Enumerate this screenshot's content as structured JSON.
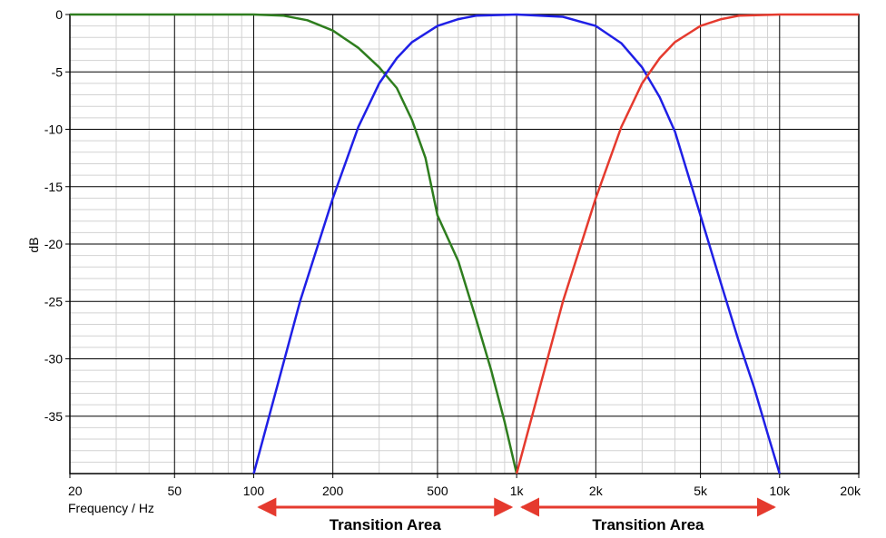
{
  "chart_data": {
    "type": "line",
    "xscale": "log",
    "xlabel": "Frequency / Hz",
    "ylabel": "dB",
    "xlim": [
      20,
      20000
    ],
    "ylim": [
      -40,
      0
    ],
    "grid": true,
    "x_ticks": [
      {
        "value": 20,
        "label": "20"
      },
      {
        "value": 50,
        "label": "50"
      },
      {
        "value": 100,
        "label": "100"
      },
      {
        "value": 200,
        "label": "200"
      },
      {
        "value": 500,
        "label": "500"
      },
      {
        "value": 1000,
        "label": "1k"
      },
      {
        "value": 2000,
        "label": "2k"
      },
      {
        "value": 5000,
        "label": "5k"
      },
      {
        "value": 10000,
        "label": "10k"
      },
      {
        "value": 20000,
        "label": "20k"
      }
    ],
    "y_ticks": [
      {
        "value": 0,
        "label": "0"
      },
      {
        "value": -5,
        "label": "-5"
      },
      {
        "value": -10,
        "label": "-10"
      },
      {
        "value": -15,
        "label": "-15"
      },
      {
        "value": -20,
        "label": "-20"
      },
      {
        "value": -25,
        "label": "-25"
      },
      {
        "value": -30,
        "label": "-30"
      },
      {
        "value": -35,
        "label": "-35"
      }
    ],
    "series": [
      {
        "color": "#2e7d1e",
        "points": [
          [
            20,
            0
          ],
          [
            100,
            0
          ],
          [
            130,
            -0.1
          ],
          [
            160,
            -0.5
          ],
          [
            200,
            -1.4
          ],
          [
            250,
            -2.9
          ],
          [
            300,
            -4.6
          ],
          [
            350,
            -6.4
          ],
          [
            400,
            -9.2
          ],
          [
            450,
            -12.5
          ],
          [
            500,
            -17.5
          ],
          [
            600,
            -21.5
          ],
          [
            700,
            -26.5
          ],
          [
            800,
            -31
          ],
          [
            900,
            -35.5
          ],
          [
            1000,
            -40
          ]
        ]
      },
      {
        "color": "#1f1fe6",
        "points": [
          [
            100,
            -40
          ],
          [
            150,
            -25
          ],
          [
            200,
            -16
          ],
          [
            250,
            -9.8
          ],
          [
            300,
            -6.0
          ],
          [
            350,
            -3.8
          ],
          [
            400,
            -2.4
          ],
          [
            500,
            -1.0
          ],
          [
            600,
            -0.4
          ],
          [
            700,
            -0.1
          ],
          [
            1000,
            0
          ],
          [
            1500,
            -0.2
          ],
          [
            2000,
            -1.0
          ],
          [
            2500,
            -2.5
          ],
          [
            3000,
            -4.6
          ],
          [
            3500,
            -7.2
          ],
          [
            4000,
            -10.2
          ],
          [
            5000,
            -17.5
          ],
          [
            6000,
            -23.5
          ],
          [
            7000,
            -28.5
          ],
          [
            8000,
            -32.5
          ],
          [
            9000,
            -36.5
          ],
          [
            10000,
            -40
          ]
        ]
      },
      {
        "color": "#e53a2e",
        "points": [
          [
            1000,
            -40
          ],
          [
            1500,
            -25
          ],
          [
            2000,
            -16
          ],
          [
            2500,
            -9.8
          ],
          [
            3000,
            -6.0
          ],
          [
            3500,
            -3.8
          ],
          [
            4000,
            -2.4
          ],
          [
            5000,
            -1.0
          ],
          [
            6000,
            -0.4
          ],
          [
            7000,
            -0.1
          ],
          [
            10000,
            0
          ],
          [
            20000,
            0
          ]
        ]
      }
    ],
    "annotations": [
      {
        "text": "Transition Area",
        "from": 100,
        "to": 1000,
        "color": "#e53a2e"
      },
      {
        "text": "Transition Area",
        "from": 1000,
        "to": 10000,
        "color": "#e53a2e"
      }
    ]
  }
}
